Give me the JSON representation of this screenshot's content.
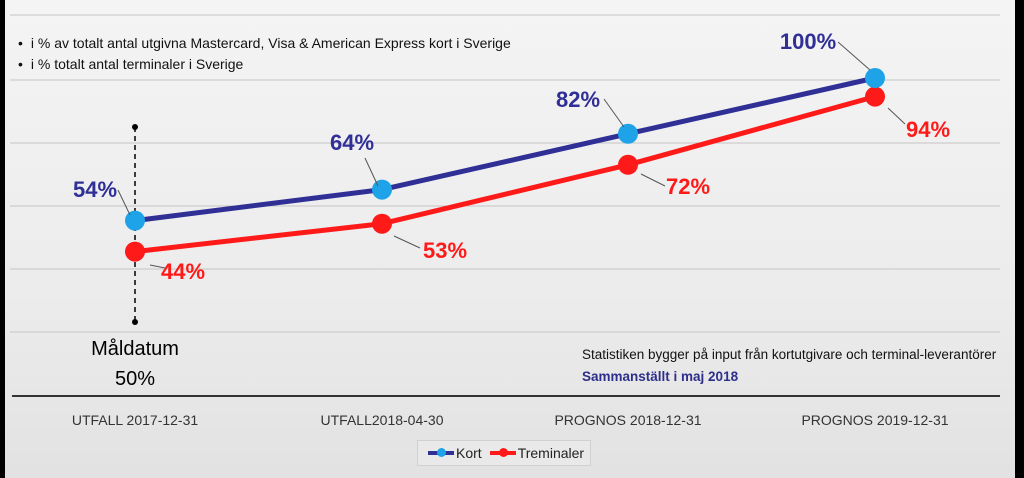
{
  "notes": {
    "line1": "i % av totalt antal utgivna Mastercard, Visa & American Express kort i Sverige",
    "line2": "i % totalt antal terminaler i Sverige"
  },
  "source": {
    "line1": "Statistiken bygger på input från kortutgivare och terminal-leverantörer",
    "line2": "Sammanställt i maj 2018"
  },
  "target": {
    "label": "Måldatum",
    "value_text": "50%",
    "value": 50
  },
  "colors": {
    "kort_line": "#2f2f96",
    "kort_marker": "#1fa3e8",
    "kort_label": "#2f2f96",
    "treminaler": "#ff1a1a"
  },
  "chart_data": {
    "type": "line",
    "categories": [
      "UTFALL 2017-12-31",
      "UTFALL2018-04-30",
      "PROGNOS 2018-12-31",
      "PROGNOS 2019-12-31"
    ],
    "series": [
      {
        "name": "Kort",
        "values": [
          54,
          64,
          82,
          100
        ],
        "labels": [
          "54%",
          "64%",
          "82%",
          "100%"
        ]
      },
      {
        "name": "Treminaler",
        "values": [
          44,
          53,
          72,
          94
        ],
        "labels": [
          "44%",
          "53%",
          "72%",
          "94%"
        ]
      }
    ],
    "legend_position": "bottom-center",
    "grid": true
  }
}
